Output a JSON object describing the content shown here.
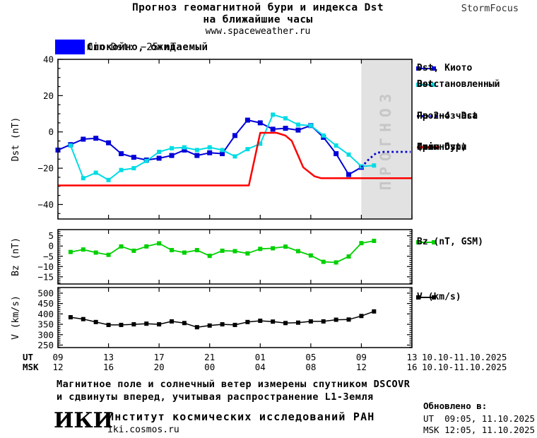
{
  "header": {
    "title_line1": "Прогноз геомагнитной бури и индекса Dst",
    "title_line2": "на ближайшие часы",
    "url": "www.spaceweather.ru",
    "brand": "StormFocus"
  },
  "status_banner": {
    "level_text": "Спокойно, ожидаемый",
    "detail_text": "min Dst: −25 nT",
    "color": "#0000ff"
  },
  "colors": {
    "kyoto": "#0000d8",
    "restored": "#00dce4",
    "forecast": "#0000d8",
    "storm": "#ff0000",
    "bz": "#00d000",
    "v": "#000000",
    "forecast_region": "#e2e2e2",
    "forecast_region_text": "#c6c6c6"
  },
  "legend": {
    "dst_kyoto": "Dst, Киото",
    "restored_1": "Восстановленный",
    "restored_2": "Dst",
    "forecast_1": "Прогноз Dst",
    "forecast_2": "на 2−4 часа",
    "storm_1": "Прогноз",
    "storm_2": "силы бури",
    "storm_3": "(min Dst)",
    "bz": "Bz (nT, GSM)",
    "v": "V (km/s)"
  },
  "xaxis": {
    "ut_label": "UT",
    "msk_label": "MSK",
    "ut_ticks": [
      "09",
      "13",
      "17",
      "21",
      "01",
      "05",
      "09",
      "13"
    ],
    "msk_ticks": [
      "12",
      "16",
      "20",
      "00",
      "04",
      "08",
      "12",
      "16"
    ],
    "date_range_ut": "10.10-11.10.2025",
    "date_range_msk": "10.10-11.10.2025"
  },
  "footer": {
    "note_1": "Магнитное поле и солнечный ветер измерены спутником DSCOVR",
    "note_2": "и сдвинуты вперед, учитывая распространение L1-Земля",
    "logo_text": "ИКИ",
    "institute": "Институт космических исследований РАН",
    "website": "iki.cosmos.ru",
    "updated_label": "Обновлено в:",
    "updated_ut": "UT  09:05, 11.10.2025",
    "updated_msk": "MSK 12:05, 11.10.2025"
  },
  "chart_data": [
    {
      "type": "line",
      "panel": "dst",
      "ylabel": "Dst (nT)",
      "ylim": [
        -48,
        40
      ],
      "yticks": [
        40,
        20,
        0,
        -20,
        -40
      ],
      "yminor": 5,
      "xlim_hours": [
        9,
        37
      ],
      "xticks_hours": [
        9,
        13,
        17,
        21,
        25,
        29,
        33,
        37
      ],
      "forecast_region": {
        "start_hour": 33,
        "end_hour": 37,
        "label": "ПРОГНОЗ"
      },
      "series": [
        {
          "name": "Dst, Киото",
          "color_key": "kyoto",
          "line_width": 2,
          "marker": 7,
          "x": [
            9,
            10,
            11,
            12,
            13,
            14,
            15,
            16,
            17,
            18,
            19,
            20,
            21,
            22,
            23,
            24,
            25,
            26,
            27,
            28,
            29,
            30,
            31,
            32,
            33
          ],
          "values": [
            -10,
            -7,
            -4,
            -3.5,
            -6,
            -12,
            -14,
            -15.5,
            -14.5,
            -13,
            -10,
            -13,
            -11.5,
            -12,
            -2,
            6.5,
            5,
            1.5,
            2,
            1,
            3.5,
            -3,
            -12,
            -23.5,
            -19.5
          ]
        },
        {
          "name": "Восстановленный Dst",
          "color_key": "restored",
          "line_width": 2,
          "marker": 6,
          "x": [
            10,
            11,
            12,
            13,
            14,
            15,
            16,
            17,
            18,
            19,
            20,
            21,
            22,
            23,
            24,
            25,
            26,
            27,
            28,
            29,
            30,
            31,
            32,
            33,
            34
          ],
          "values": [
            -7.5,
            -25.5,
            -22.5,
            -26.5,
            -21,
            -20,
            -16,
            -11,
            -9,
            -8.5,
            -10,
            -8.5,
            -10,
            -13.5,
            -9.5,
            -6.5,
            9.5,
            7.5,
            4,
            3.5,
            -2,
            -7.5,
            -12.5,
            -19,
            -18.5
          ]
        },
        {
          "name": "Прогноз Dst на 2−4 часа",
          "color_key": "forecast",
          "line_width": 2.8,
          "dash": "2.8,3.6",
          "marker": 0,
          "x": [
            33,
            33.6,
            34.2,
            34.8,
            36.9
          ],
          "values": [
            -19.5,
            -15,
            -11.5,
            -11,
            -11
          ]
        },
        {
          "name": "Прогноз силы бури (min Dst)",
          "color_key": "storm",
          "line_width": 2.5,
          "marker": 0,
          "x": [
            9,
            24.1,
            25,
            26.3,
            27,
            27.5,
            28.4,
            29.3,
            29.8,
            37
          ],
          "values": [
            -29.5,
            -29.5,
            -0.5,
            -0.5,
            -2,
            -5,
            -19.5,
            -24.5,
            -25.5,
            -25.5
          ]
        }
      ]
    },
    {
      "type": "line",
      "panel": "bz",
      "ylabel": "Bz (nT)",
      "ylim": [
        -18.5,
        8
      ],
      "yticks": [
        5,
        0,
        -5,
        -10,
        -15
      ],
      "yminor": 1,
      "xlim_hours": [
        9,
        37
      ],
      "xticks_hours": [
        9,
        13,
        17,
        21,
        25,
        29,
        33,
        37
      ],
      "series": [
        {
          "name": "Bz (nT, GSM)",
          "color_key": "bz",
          "line_width": 1.8,
          "marker": 6,
          "x": [
            10,
            11,
            12,
            13,
            14,
            15,
            16,
            17,
            18,
            19,
            20,
            21,
            22,
            23,
            24,
            25,
            26,
            27,
            28,
            29,
            30,
            31,
            32,
            33,
            34
          ],
          "values": [
            -2.9,
            -1.7,
            -3.2,
            -4.3,
            -0.2,
            -2.3,
            -0.2,
            1.3,
            -2,
            -3.2,
            -2,
            -4.8,
            -2.3,
            -2.5,
            -3.6,
            -1.4,
            -1.1,
            -0.3,
            -2.5,
            -4.6,
            -7.7,
            -8,
            -5.1,
            1.4,
            2.5
          ]
        }
      ]
    },
    {
      "type": "line",
      "panel": "v",
      "ylabel": "V (km/s)",
      "ylim": [
        238,
        527
      ],
      "yticks": [
        500,
        450,
        400,
        350,
        300,
        250
      ],
      "yminor": 10,
      "xlim_hours": [
        9,
        37
      ],
      "xticks_hours": [
        9,
        13,
        17,
        21,
        25,
        29,
        33,
        37
      ],
      "series": [
        {
          "name": "V (km/s)",
          "color_key": "v",
          "line_width": 1.5,
          "marker": 6,
          "x": [
            10,
            11,
            12,
            13,
            14,
            15,
            16,
            17,
            18,
            19,
            20,
            21,
            22,
            23,
            24,
            25,
            26,
            27,
            28,
            29,
            30,
            31,
            32,
            33,
            34
          ],
          "values": [
            384,
            375,
            361,
            347,
            347,
            350,
            353,
            350,
            364,
            356,
            336,
            344,
            350,
            347,
            361,
            367,
            363,
            356,
            358,
            364,
            364,
            372,
            373,
            390,
            412
          ]
        }
      ]
    }
  ]
}
